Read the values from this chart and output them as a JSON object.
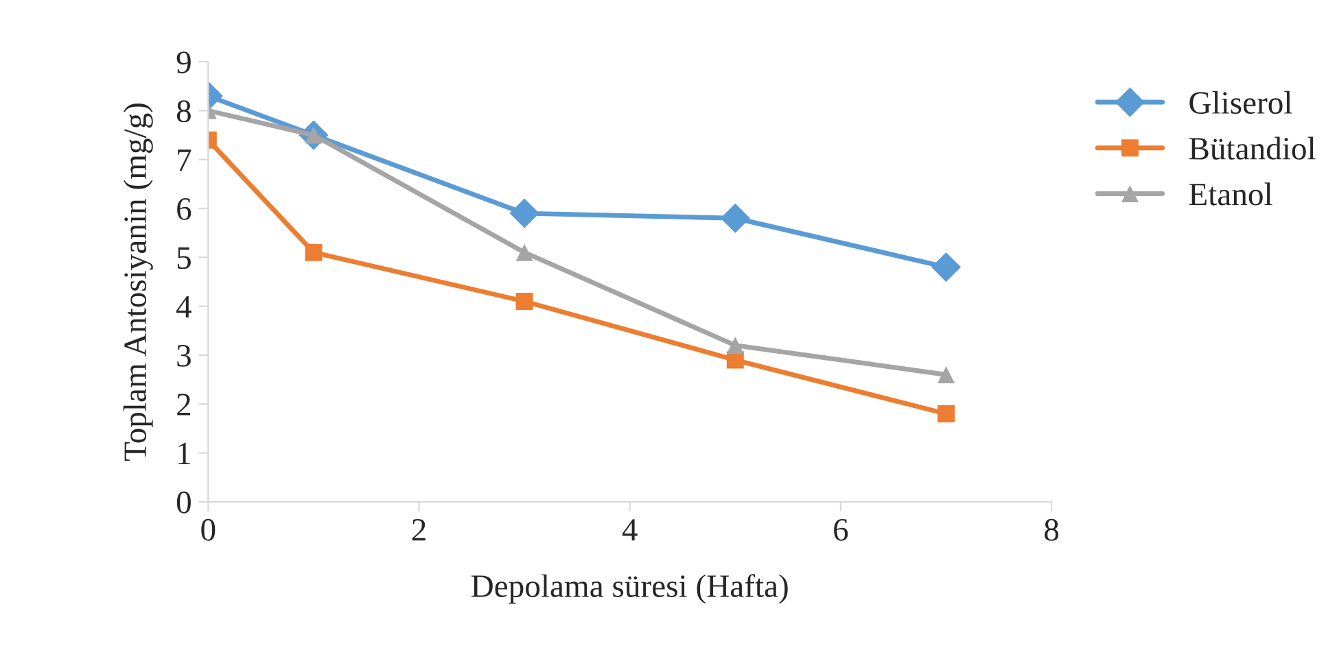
{
  "chart_data": {
    "type": "line",
    "xlabel": "Depolama süresi (Hafta)",
    "ylabel": "Toplam Antosiyanin (mg/g)",
    "x": [
      0,
      1,
      3,
      5,
      7
    ],
    "series": [
      {
        "name": "Gliserol",
        "color": "#5b9bd5",
        "marker": "diamond",
        "values": [
          8.3,
          7.5,
          5.9,
          5.8,
          4.8
        ]
      },
      {
        "name": "Bütandiol",
        "color": "#ed7d31",
        "marker": "square",
        "values": [
          7.4,
          5.1,
          4.1,
          2.9,
          1.8
        ]
      },
      {
        "name": "Etanol",
        "color": "#a5a5a5",
        "marker": "triangle",
        "values": [
          8.0,
          7.5,
          5.1,
          3.2,
          2.6
        ]
      }
    ],
    "xlim": [
      0,
      8
    ],
    "xticks": [
      0,
      2,
      4,
      6,
      8
    ],
    "ylim": [
      0,
      9
    ],
    "yticks": [
      0,
      1,
      2,
      3,
      4,
      5,
      6,
      7,
      8,
      9
    ],
    "grid": false,
    "legend": "top right",
    "line_style": "solid"
  }
}
